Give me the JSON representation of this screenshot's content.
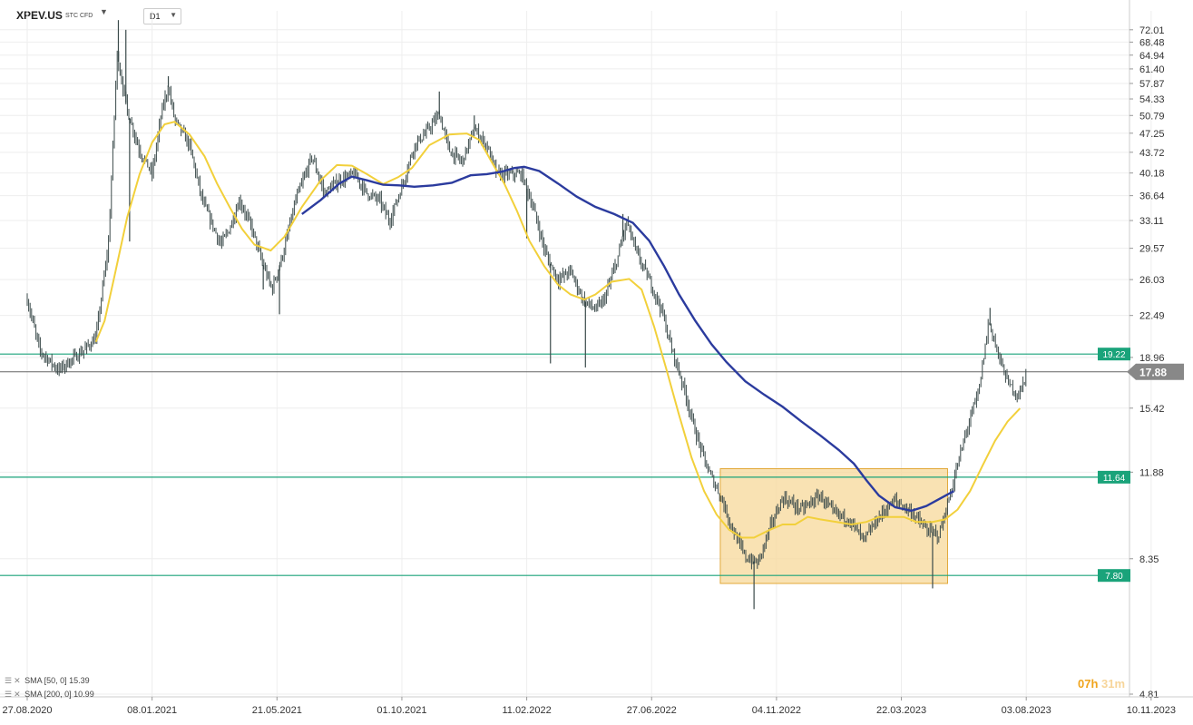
{
  "header": {
    "symbol": "XPEV.US",
    "symbol_sub": "STC CFD",
    "timeframe": "D1"
  },
  "legend": [
    {
      "text": "SMA [50, 0] 15.39"
    },
    {
      "text": "SMA [200, 0] 10.99"
    }
  ],
  "timer": {
    "h": "07h",
    "m": "31m"
  },
  "colors": {
    "sma50": "#f2d03b",
    "sma200": "#2b3b9e",
    "hline": "#1aa37a",
    "current": "#666666",
    "zone_fill": "#f7d89a",
    "zone_stroke": "#e2a93a",
    "candle": "#3a4a4a",
    "label_green": "#1aa37a",
    "label_gray": "#888888"
  },
  "chart_data": {
    "type": "candlestick",
    "y_scale": "log",
    "ylim": [
      4.81,
      75.5
    ],
    "y_ticks": [
      "72.01",
      "68.48",
      "64.94",
      "61.40",
      "57.87",
      "54.33",
      "50.79",
      "47.25",
      "43.72",
      "40.18",
      "36.64",
      "33.11",
      "29.57",
      "26.03",
      "22.49",
      "18.96",
      "15.42",
      "11.88",
      "8.35",
      "4.81"
    ],
    "x_ticks": [
      "27.08.2020",
      "08.01.2021",
      "21.05.2021",
      "01.10.2021",
      "11.02.2022",
      "27.06.2022",
      "04.11.2022",
      "22.03.2023",
      "03.08.2023",
      "10.11.2023"
    ],
    "price_path": [
      [
        0,
        24.0
      ],
      [
        0.1,
        19.5
      ],
      [
        0.25,
        18.0
      ],
      [
        0.45,
        19.5
      ],
      [
        0.55,
        20.5
      ],
      [
        0.65,
        30
      ],
      [
        0.72,
        65
      ],
      [
        0.8,
        52
      ],
      [
        0.9,
        44
      ],
      [
        1.0,
        40
      ],
      [
        1.08,
        52
      ],
      [
        1.13,
        57
      ],
      [
        1.18,
        50
      ],
      [
        1.3,
        45
      ],
      [
        1.4,
        36
      ],
      [
        1.55,
        30
      ],
      [
        1.62,
        32
      ],
      [
        1.7,
        36
      ],
      [
        1.8,
        32
      ],
      [
        1.88,
        28
      ],
      [
        1.96,
        25
      ],
      [
        2.05,
        29
      ],
      [
        2.15,
        36
      ],
      [
        2.28,
        43
      ],
      [
        2.38,
        37
      ],
      [
        2.5,
        39
      ],
      [
        2.62,
        40
      ],
      [
        2.72,
        37
      ],
      [
        2.82,
        36
      ],
      [
        2.9,
        33
      ],
      [
        3.0,
        38
      ],
      [
        3.1,
        45
      ],
      [
        3.18,
        47
      ],
      [
        3.3,
        51
      ],
      [
        3.38,
        44
      ],
      [
        3.48,
        42
      ],
      [
        3.58,
        48
      ],
      [
        3.68,
        45
      ],
      [
        3.76,
        40
      ],
      [
        3.86,
        40
      ],
      [
        3.96,
        40
      ],
      [
        4.05,
        35
      ],
      [
        4.15,
        29
      ],
      [
        4.25,
        26
      ],
      [
        4.35,
        27
      ],
      [
        4.45,
        24
      ],
      [
        4.55,
        23
      ],
      [
        4.62,
        24
      ],
      [
        4.72,
        28
      ],
      [
        4.8,
        33
      ],
      [
        4.88,
        29
      ],
      [
        4.98,
        26
      ],
      [
        5.08,
        23
      ],
      [
        5.15,
        20
      ],
      [
        5.25,
        17
      ],
      [
        5.35,
        14
      ],
      [
        5.45,
        12
      ],
      [
        5.55,
        10.8
      ],
      [
        5.65,
        9.4
      ],
      [
        5.75,
        8.4
      ],
      [
        5.85,
        8.2
      ],
      [
        5.95,
        9.5
      ],
      [
        6.05,
        10.7
      ],
      [
        6.2,
        10.2
      ],
      [
        6.35,
        10.8
      ],
      [
        6.45,
        10.1
      ],
      [
        6.58,
        9.8
      ],
      [
        6.7,
        9.0
      ],
      [
        6.82,
        9.9
      ],
      [
        6.95,
        10.6
      ],
      [
        7.08,
        10.1
      ],
      [
        7.2,
        9.4
      ],
      [
        7.3,
        9.2
      ],
      [
        7.38,
        10.6
      ],
      [
        7.48,
        13.0
      ],
      [
        7.55,
        14.8
      ],
      [
        7.62,
        16.5
      ],
      [
        7.7,
        22.0
      ],
      [
        7.78,
        19.0
      ],
      [
        7.86,
        17.0
      ],
      [
        7.94,
        16.2
      ],
      [
        8.0,
        17.8
      ]
    ],
    "price_spikes": [
      [
        0.73,
        74.9
      ],
      [
        0.79,
        72.0
      ],
      [
        1.13,
        59.6
      ],
      [
        3.3,
        56.0
      ],
      [
        3.58,
        50.8
      ],
      [
        4.77,
        34.0
      ],
      [
        7.71,
        23.2
      ]
    ],
    "price_dips": [
      [
        0.82,
        30.4
      ],
      [
        1.89,
        25.0
      ],
      [
        2.02,
        22.6
      ],
      [
        4.0,
        30.8
      ],
      [
        4.19,
        18.5
      ],
      [
        4.47,
        18.2
      ],
      [
        5.82,
        6.8
      ],
      [
        7.25,
        7.4
      ]
    ],
    "sma50": [
      [
        0.55,
        20.2
      ],
      [
        0.62,
        22.0
      ],
      [
        0.7,
        26.5
      ],
      [
        0.8,
        33.5
      ],
      [
        0.9,
        40.0
      ],
      [
        1.0,
        45.5
      ],
      [
        1.1,
        49.0
      ],
      [
        1.18,
        49.5
      ],
      [
        1.3,
        47.0
      ],
      [
        1.42,
        43.0
      ],
      [
        1.52,
        38.5
      ],
      [
        1.62,
        35.0
      ],
      [
        1.72,
        32.0
      ],
      [
        1.82,
        30.0
      ],
      [
        1.95,
        29.3
      ],
      [
        2.06,
        31.0
      ],
      [
        2.2,
        35.0
      ],
      [
        2.35,
        39.0
      ],
      [
        2.48,
        41.5
      ],
      [
        2.6,
        41.4
      ],
      [
        2.72,
        40.0
      ],
      [
        2.85,
        38.4
      ],
      [
        2.97,
        39.5
      ],
      [
        3.08,
        41.0
      ],
      [
        3.22,
        45.0
      ],
      [
        3.38,
        47.0
      ],
      [
        3.52,
        47.2
      ],
      [
        3.62,
        46.0
      ],
      [
        3.72,
        42.0
      ],
      [
        3.82,
        38.5
      ],
      [
        3.92,
        34.5
      ],
      [
        4.02,
        30.5
      ],
      [
        4.14,
        27.5
      ],
      [
        4.25,
        25.5
      ],
      [
        4.35,
        24.5
      ],
      [
        4.46,
        24.0
      ],
      [
        4.55,
        24.5
      ],
      [
        4.68,
        25.8
      ],
      [
        4.82,
        26.1
      ],
      [
        4.92,
        25.0
      ],
      [
        5.02,
        21.5
      ],
      [
        5.12,
        18.0
      ],
      [
        5.22,
        15.0
      ],
      [
        5.32,
        12.6
      ],
      [
        5.42,
        11.0
      ],
      [
        5.52,
        10.0
      ],
      [
        5.62,
        9.4
      ],
      [
        5.72,
        9.1
      ],
      [
        5.82,
        9.1
      ],
      [
        5.95,
        9.4
      ],
      [
        6.05,
        9.6
      ],
      [
        6.15,
        9.6
      ],
      [
        6.25,
        9.9
      ],
      [
        6.35,
        9.8
      ],
      [
        6.48,
        9.7
      ],
      [
        6.6,
        9.6
      ],
      [
        6.72,
        9.7
      ],
      [
        6.82,
        9.9
      ],
      [
        6.92,
        9.9
      ],
      [
        7.02,
        9.9
      ],
      [
        7.12,
        9.7
      ],
      [
        7.25,
        9.7
      ],
      [
        7.35,
        9.8
      ],
      [
        7.45,
        10.2
      ],
      [
        7.55,
        11.0
      ],
      [
        7.65,
        12.2
      ],
      [
        7.75,
        13.5
      ],
      [
        7.85,
        14.6
      ],
      [
        7.95,
        15.4
      ]
    ],
    "sma200": [
      [
        2.2,
        34.0
      ],
      [
        2.35,
        36.0
      ],
      [
        2.5,
        38.5
      ],
      [
        2.6,
        39.6
      ],
      [
        2.72,
        39.0
      ],
      [
        2.85,
        38.3
      ],
      [
        2.98,
        38.2
      ],
      [
        3.1,
        38.0
      ],
      [
        3.25,
        38.2
      ],
      [
        3.4,
        38.6
      ],
      [
        3.55,
        39.8
      ],
      [
        3.68,
        40.0
      ],
      [
        3.8,
        40.4
      ],
      [
        3.9,
        41.0
      ],
      [
        3.98,
        41.2
      ],
      [
        4.1,
        40.5
      ],
      [
        4.25,
        38.5
      ],
      [
        4.4,
        36.5
      ],
      [
        4.55,
        35.0
      ],
      [
        4.7,
        34.0
      ],
      [
        4.85,
        32.8
      ],
      [
        4.98,
        30.5
      ],
      [
        5.1,
        27.5
      ],
      [
        5.22,
        24.5
      ],
      [
        5.35,
        22.0
      ],
      [
        5.48,
        20.0
      ],
      [
        5.6,
        18.6
      ],
      [
        5.75,
        17.2
      ],
      [
        5.9,
        16.3
      ],
      [
        6.05,
        15.5
      ],
      [
        6.2,
        14.6
      ],
      [
        6.35,
        13.8
      ],
      [
        6.5,
        13.0
      ],
      [
        6.62,
        12.3
      ],
      [
        6.72,
        11.5
      ],
      [
        6.82,
        10.8
      ],
      [
        6.95,
        10.3
      ],
      [
        7.08,
        10.15
      ],
      [
        7.2,
        10.35
      ],
      [
        7.32,
        10.7
      ],
      [
        7.42,
        11.0
      ]
    ],
    "horizontal_lines": [
      {
        "value": 19.22,
        "label": "19.22",
        "kind": "level"
      },
      {
        "value": 11.64,
        "label": "11.64",
        "kind": "level"
      },
      {
        "value": 7.8,
        "label": "7.80",
        "kind": "level"
      },
      {
        "value": 17.88,
        "label": "17.88",
        "kind": "current"
      }
    ],
    "zone": {
      "x_from": 5.55,
      "x_to": 7.37,
      "y_from": 7.55,
      "y_to": 12.05
    }
  }
}
